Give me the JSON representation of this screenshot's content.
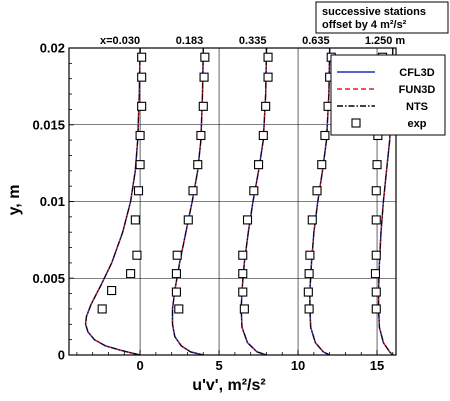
{
  "chart_data": {
    "type": "line",
    "title": "",
    "xlabel": "u'v', m²/s²",
    "ylabel": "y, m",
    "xlim": [
      -4.5,
      16.2
    ],
    "ylim": [
      0,
      0.02
    ],
    "xticks": [
      {
        "value": 0,
        "label": "0"
      },
      {
        "value": 5,
        "label": "5"
      },
      {
        "value": 10,
        "label": "10"
      },
      {
        "value": 15,
        "label": "15"
      }
    ],
    "yticks": [
      {
        "value": 0,
        "label": "0"
      },
      {
        "value": 0.005,
        "label": "0.005"
      },
      {
        "value": 0.01,
        "label": "0.01"
      },
      {
        "value": 0.015,
        "label": "0.015"
      },
      {
        "value": 0.02,
        "label": "0.02"
      }
    ],
    "grid": true,
    "station_offset": 4,
    "annotation": "successive stations offset by 4 m²/s²",
    "legend": {
      "placement": "top-right",
      "entries": [
        {
          "name": "CFL3D",
          "color": "#1f2fbf",
          "style": "solid"
        },
        {
          "name": "FUN3D",
          "color": "#e02020",
          "style": "dashed"
        },
        {
          "name": "NTS",
          "color": "#000000",
          "style": "dashdot"
        },
        {
          "name": "exp",
          "color": "#000000",
          "style": "square-marker"
        }
      ]
    },
    "stations": [
      {
        "label": "x=0.030",
        "baseline": 0,
        "curve": [
          [
            0,
            0.02
          ],
          [
            -0.05,
            0.017
          ],
          [
            -0.15,
            0.014
          ],
          [
            -0.3,
            0.012
          ],
          [
            -0.6,
            0.01
          ],
          [
            -1.1,
            0.008
          ],
          [
            -1.8,
            0.006
          ],
          [
            -2.5,
            0.0045
          ],
          [
            -3.1,
            0.0033
          ],
          [
            -3.4,
            0.0025
          ],
          [
            -3.45,
            0.002
          ],
          [
            -3.3,
            0.0015
          ],
          [
            -2.9,
            0.001
          ],
          [
            -2.2,
            0.0006
          ],
          [
            -1.2,
            0.0003
          ],
          [
            -0.4,
            0.0001
          ],
          [
            0,
            0
          ]
        ],
        "exp": [
          [
            -2.4,
            0.003
          ],
          [
            -1.8,
            0.0042
          ],
          [
            -0.6,
            0.0053
          ],
          [
            -0.2,
            0.0065
          ],
          [
            -0.3,
            0.0088
          ],
          [
            -0.1,
            0.0107
          ],
          [
            0,
            0.0124
          ],
          [
            0,
            0.0143
          ],
          [
            0.1,
            0.0162
          ],
          [
            0.1,
            0.0181
          ],
          [
            0.1,
            0.0194
          ]
        ]
      },
      {
        "label": "0.183",
        "baseline": 4,
        "curve": [
          [
            4,
            0.02
          ],
          [
            3.95,
            0.017
          ],
          [
            3.85,
            0.014
          ],
          [
            3.65,
            0.012
          ],
          [
            3.3,
            0.01
          ],
          [
            2.9,
            0.008
          ],
          [
            2.5,
            0.006
          ],
          [
            2.2,
            0.0042
          ],
          [
            2.05,
            0.003
          ],
          [
            2.05,
            0.002
          ],
          [
            2.2,
            0.0012
          ],
          [
            2.6,
            0.0006
          ],
          [
            3.2,
            0.0002
          ],
          [
            4,
            0
          ]
        ],
        "exp": [
          [
            2.45,
            0.003
          ],
          [
            2.3,
            0.0041
          ],
          [
            2.3,
            0.0053
          ],
          [
            2.35,
            0.0065
          ],
          [
            3.05,
            0.0088
          ],
          [
            3.35,
            0.0107
          ],
          [
            3.65,
            0.0124
          ],
          [
            3.85,
            0.0143
          ],
          [
            4.0,
            0.0162
          ],
          [
            4.05,
            0.0181
          ],
          [
            4.1,
            0.0194
          ]
        ]
      },
      {
        "label": "0.335",
        "baseline": 8,
        "curve": [
          [
            8,
            0.02
          ],
          [
            7.95,
            0.017
          ],
          [
            7.8,
            0.014
          ],
          [
            7.5,
            0.012
          ],
          [
            7.15,
            0.01
          ],
          [
            6.85,
            0.008
          ],
          [
            6.6,
            0.006
          ],
          [
            6.45,
            0.0042
          ],
          [
            6.4,
            0.003
          ],
          [
            6.45,
            0.0018
          ],
          [
            6.8,
            0.0008
          ],
          [
            7.4,
            0.0002
          ],
          [
            8,
            0
          ]
        ],
        "exp": [
          [
            6.6,
            0.003
          ],
          [
            6.5,
            0.0041
          ],
          [
            6.5,
            0.0053
          ],
          [
            6.5,
            0.0065
          ],
          [
            6.8,
            0.0088
          ],
          [
            7.2,
            0.0107
          ],
          [
            7.5,
            0.0124
          ],
          [
            7.8,
            0.0143
          ],
          [
            7.95,
            0.0162
          ],
          [
            8.1,
            0.0181
          ],
          [
            8.1,
            0.0194
          ]
        ]
      },
      {
        "label": "0.635",
        "baseline": 12,
        "curve": [
          [
            12,
            0.02
          ],
          [
            11.95,
            0.017
          ],
          [
            11.8,
            0.014
          ],
          [
            11.55,
            0.012
          ],
          [
            11.25,
            0.01
          ],
          [
            11.0,
            0.008
          ],
          [
            10.85,
            0.006
          ],
          [
            10.75,
            0.0042
          ],
          [
            10.75,
            0.003
          ],
          [
            10.8,
            0.0018
          ],
          [
            11.1,
            0.0008
          ],
          [
            11.6,
            0.0002
          ],
          [
            12,
            0
          ]
        ],
        "exp": [
          [
            10.7,
            0.003
          ],
          [
            10.65,
            0.0041
          ],
          [
            10.7,
            0.0053
          ],
          [
            10.75,
            0.0065
          ],
          [
            10.9,
            0.0088
          ],
          [
            11.2,
            0.0107
          ],
          [
            11.5,
            0.0124
          ],
          [
            11.7,
            0.0143
          ],
          [
            11.9,
            0.0162
          ],
          [
            12.0,
            0.0181
          ],
          [
            12.1,
            0.0194
          ]
        ]
      },
      {
        "label": "1.250 m",
        "baseline": 16,
        "curve": [
          [
            16,
            0.02
          ],
          [
            15.95,
            0.017
          ],
          [
            15.8,
            0.014
          ],
          [
            15.6,
            0.012
          ],
          [
            15.4,
            0.01
          ],
          [
            15.25,
            0.008
          ],
          [
            15.15,
            0.006
          ],
          [
            15.1,
            0.0042
          ],
          [
            15.1,
            0.003
          ],
          [
            15.15,
            0.0018
          ],
          [
            15.4,
            0.0008
          ],
          [
            15.8,
            0.0002
          ],
          [
            16,
            0
          ]
        ],
        "exp": [
          [
            14.95,
            0.003
          ],
          [
            14.95,
            0.0041
          ],
          [
            14.9,
            0.0053
          ],
          [
            14.95,
            0.0065
          ],
          [
            14.95,
            0.0088
          ],
          [
            14.95,
            0.0107
          ],
          [
            15.0,
            0.0124
          ],
          [
            15.05,
            0.0143
          ],
          [
            15.15,
            0.0162
          ],
          [
            15.25,
            0.0181
          ],
          [
            15.35,
            0.0194
          ]
        ]
      }
    ]
  }
}
